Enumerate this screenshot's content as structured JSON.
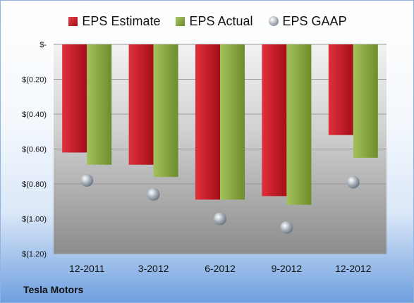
{
  "chart_data": {
    "type": "bar",
    "categories": [
      "12-2011",
      "3-2012",
      "6-2012",
      "9-2012",
      "12-2012"
    ],
    "series": [
      {
        "name": "EPS Estimate",
        "kind": "bar",
        "color": "#c81e2a",
        "values": [
          -0.62,
          -0.69,
          -0.89,
          -0.87,
          -0.52
        ]
      },
      {
        "name": "EPS Actual",
        "kind": "bar",
        "color": "#8aab3e",
        "values": [
          -0.69,
          -0.76,
          -0.89,
          -0.92,
          -0.65
        ]
      },
      {
        "name": "EPS GAAP",
        "kind": "marker",
        "color": "#a3acb6",
        "values": [
          -0.78,
          -0.86,
          -1.0,
          -1.05,
          -0.79
        ]
      }
    ],
    "ylim": [
      -1.2,
      0
    ],
    "yticks": [
      0,
      -0.2,
      -0.4,
      -0.6,
      -0.8,
      -1.0,
      -1.2
    ],
    "ytick_labels": [
      "$-",
      "$(0.20)",
      "$(0.40)",
      "$(0.60)",
      "$(0.80)",
      "$(1.00)",
      "$(1.20)"
    ],
    "grid": true,
    "legend_position": "top",
    "caption": "Tesla Motors"
  }
}
